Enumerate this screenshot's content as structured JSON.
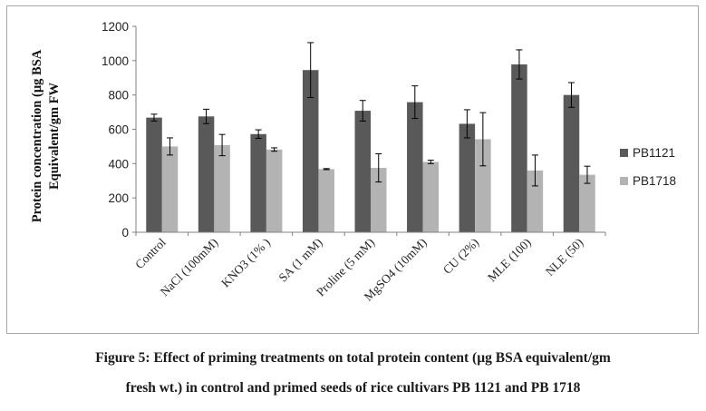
{
  "chart_data": {
    "type": "bar",
    "ylabel_line1": "Protein concentration  (µg BSA",
    "ylabel_line2": "Equivalent/gm FW",
    "ylim": [
      0,
      1200
    ],
    "yticks": [
      0,
      200,
      400,
      600,
      800,
      1000,
      1200
    ],
    "categories": [
      "Control",
      "NaCl (100mM)",
      "KNO3 (1% )",
      "SA (1 mM)",
      "Proline (5 mM)",
      "MgSO4 (10mM)",
      "CU (2%)",
      "MLE (100)",
      "NLE (50)"
    ],
    "series": [
      {
        "name": "PB1121",
        "color": "#595959",
        "values": [
          668,
          675,
          572,
          945,
          708,
          758,
          632,
          978,
          800
        ],
        "errors": [
          20,
          42,
          25,
          160,
          60,
          95,
          82,
          85,
          72
        ]
      },
      {
        "name": "PB1718",
        "color": "#b3b3b3",
        "values": [
          500,
          508,
          482,
          368,
          375,
          410,
          542,
          360,
          335
        ],
        "errors": [
          50,
          62,
          10,
          3,
          82,
          10,
          155,
          90,
          50
        ]
      }
    ],
    "legend_position": "right",
    "grid": false
  },
  "caption": {
    "line1": "Figure 5: Effect of priming treatments on total protein content (µg BSA equivalent/gm",
    "line2": "fresh wt.) in control and primed seeds of rice cultivars PB 1121 and PB 1718"
  }
}
